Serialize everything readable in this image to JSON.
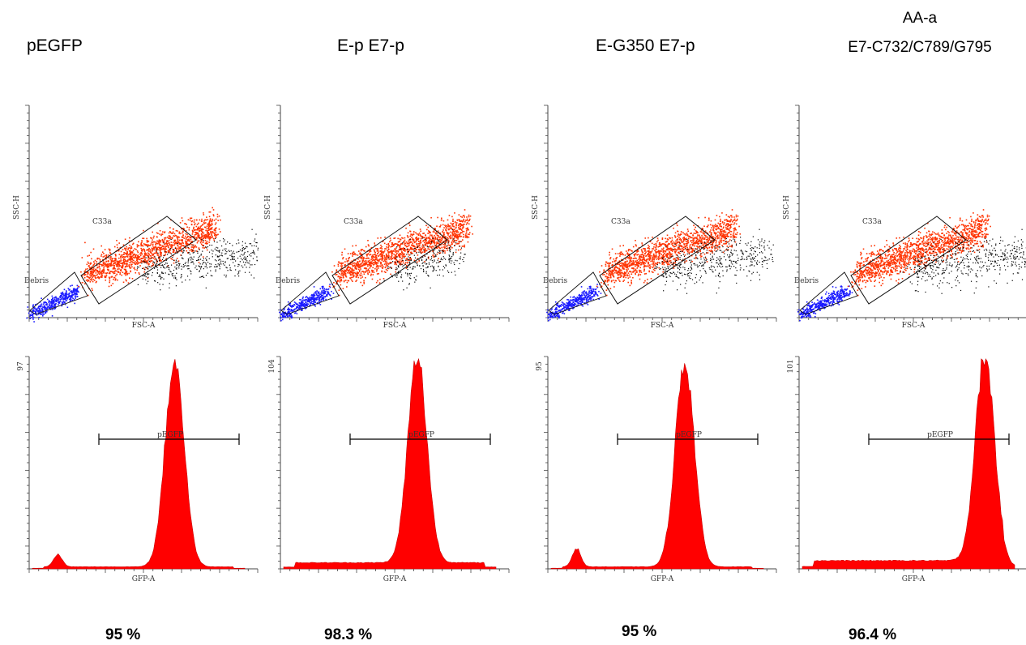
{
  "figure": {
    "columns": [
      {
        "title": "pEGFP",
        "title_line2": "",
        "percent": "95 %"
      },
      {
        "title": "E-p E7-p",
        "title_line2": "",
        "percent": "98.3 %"
      },
      {
        "title": "E-G350 E7-p",
        "title_line2": "",
        "percent": "95 %"
      },
      {
        "title": "AA-a",
        "title_line2": "E7-C732/C789/G795",
        "percent": "96.4 %"
      }
    ]
  },
  "chart_data": [
    {
      "type": "scatter",
      "panel": "pEGFP",
      "xlabel": "FSC-A",
      "ylabel": "SSC-H",
      "gates": [
        "C33a",
        "Debris"
      ],
      "colors": {
        "gated": "#ff3300",
        "debris": "#1a1aff",
        "ungated": "#000000"
      },
      "events_shape": {
        "tail_extent": 1.0
      }
    },
    {
      "type": "area",
      "panel": "pEGFP",
      "xlabel": "GFP-A",
      "ymax_label": "97",
      "gate": {
        "label": "pEGFP",
        "percent": 95
      },
      "color": "#ff0000",
      "peaks": [
        {
          "pos": 0.12,
          "height": 0.06
        },
        {
          "pos": 0.67,
          "height": 1.0
        }
      ],
      "baseline": 0.01
    },
    {
      "type": "scatter",
      "panel": "E-p E7-p",
      "xlabel": "FSC-A",
      "ylabel": "SSC-H",
      "gates": [
        "C33a",
        "Debris"
      ],
      "colors": {
        "gated": "#ff3300",
        "debris": "#1a1aff",
        "ungated": "#000000"
      },
      "events_shape": {
        "tail_extent": 0.55
      }
    },
    {
      "type": "area",
      "panel": "E-p E7-p",
      "xlabel": "GFP-A",
      "ymax_label": "104",
      "gate": {
        "label": "pEGFP",
        "percent": 98.3
      },
      "color": "#ff0000",
      "peaks": [
        {
          "pos": 0.63,
          "height": 1.0
        }
      ],
      "baseline": 0.03
    },
    {
      "type": "scatter",
      "panel": "E-G350 E7-p",
      "xlabel": "FSC-A",
      "ylabel": "SSC-H",
      "gates": [
        "C33a",
        "Debris"
      ],
      "colors": {
        "gated": "#ff3300",
        "debris": "#1a1aff",
        "ungated": "#000000"
      },
      "events_shape": {
        "tail_extent": 0.9
      }
    },
    {
      "type": "area",
      "panel": "E-G350 E7-p",
      "xlabel": "GFP-A",
      "ymax_label": "95",
      "gate": {
        "label": "pEGFP",
        "percent": 95
      },
      "color": "#ff0000",
      "peaks": [
        {
          "pos": 0.12,
          "height": 0.09
        },
        {
          "pos": 0.63,
          "height": 1.0
        }
      ],
      "baseline": 0.01
    },
    {
      "type": "scatter",
      "panel": "AA-a E7-C732/C789/G795",
      "xlabel": "FSC-A",
      "ylabel": "SSC-H",
      "gates": [
        "C33a",
        "Debris"
      ],
      "colors": {
        "gated": "#ff3300",
        "debris": "#1a1aff",
        "ungated": "#000000"
      },
      "events_shape": {
        "tail_extent": 1.0
      }
    },
    {
      "type": "area",
      "panel": "AA-a E7-C732/C789/G795",
      "xlabel": "GFP-A",
      "ymax_label": "101",
      "gate": {
        "label": "pEGFP",
        "percent": 96.4
      },
      "color": "#ff0000",
      "peaks": [
        {
          "pos": 0.86,
          "height": 1.0
        }
      ],
      "baseline": 0.04
    }
  ]
}
